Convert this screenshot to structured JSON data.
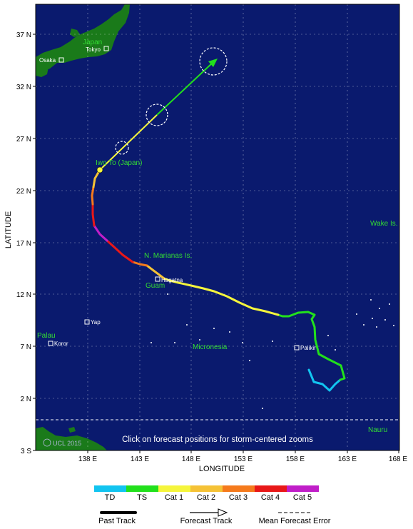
{
  "map": {
    "x_axis_label": "LONGITUDE",
    "y_axis_label": "LATITUDE",
    "lon_ticks": [
      "138 E",
      "143 E",
      "148 E",
      "153 E",
      "158 E",
      "163 E",
      "168 E"
    ],
    "lat_ticks": [
      "37 N",
      "32 N",
      "27 N",
      "22 N",
      "17 N",
      "12 N",
      "7 N",
      "2 N",
      "3 S"
    ],
    "places": {
      "japan": "Japan",
      "tokyo": "Tokyo",
      "osaka": "Osaka",
      "iwo_to": "Iwo To (Japan)",
      "wake": "Wake Is.",
      "n_marianas": "N. Marianas Is.",
      "guam": "Guam",
      "hagatna": "Hagatna",
      "yap": "Yap",
      "palau": "Palau",
      "koror": "Koror",
      "micronesia": "Micronesia",
      "palikir": "Palikir",
      "nauru": "Nauru"
    },
    "instruction": "Click on forecast positions for storm-centered zooms",
    "watermark": "UCL 2015"
  },
  "legend": {
    "categories": [
      {
        "label": "TD",
        "color": "#12c4f0"
      },
      {
        "label": "TS",
        "color": "#22e01c"
      },
      {
        "label": "Cat 1",
        "color": "#f5f53c"
      },
      {
        "label": "Cat 2",
        "color": "#f5c236"
      },
      {
        "label": "Cat 3",
        "color": "#f57a1c"
      },
      {
        "label": "Cat 4",
        "color": "#e81818"
      },
      {
        "label": "Cat 5",
        "color": "#c01ec8"
      }
    ],
    "past_track": "Past Track",
    "forecast_track": "Forecast Track",
    "mean_error": "Mean Forecast Error"
  },
  "colors": {
    "ocean": "#0a1a6e",
    "land": "#1a7a1a",
    "place_label": "#33dd33",
    "forecast": "#22e01c"
  }
}
